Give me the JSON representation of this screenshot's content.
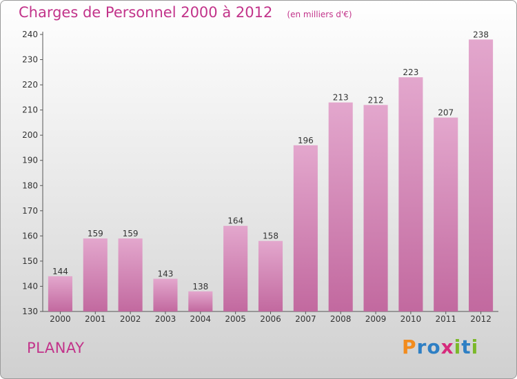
{
  "chart_data": {
    "type": "bar",
    "title": "Charges de Personnel 2000 à 2012",
    "subtitle": "(en milliers d'€)",
    "categories": [
      "2000",
      "2001",
      "2002",
      "2003",
      "2004",
      "2005",
      "2006",
      "2007",
      "2008",
      "2009",
      "2010",
      "2011",
      "2012"
    ],
    "values": [
      144,
      159,
      159,
      143,
      138,
      164,
      158,
      196,
      213,
      212,
      223,
      207,
      238
    ],
    "ylim": [
      130,
      240
    ],
    "yticks": [
      130,
      140,
      150,
      160,
      170,
      180,
      190,
      200,
      210,
      220,
      230,
      240
    ],
    "grid": false,
    "bar_color": "#c2699f",
    "bar_color_light": "#e3a7cd"
  },
  "footer": {
    "commune": "PLANAY",
    "brand_letters": [
      {
        "ch": "P",
        "color": "#f28c1e"
      },
      {
        "ch": "r",
        "color": "#2e7fc4"
      },
      {
        "ch": "o",
        "color": "#2e7fc4"
      },
      {
        "ch": "x",
        "color": "#d62a7c"
      },
      {
        "ch": "i",
        "color": "#7bb829"
      },
      {
        "ch": "t",
        "color": "#2e7fc4"
      },
      {
        "ch": "i",
        "color": "#7bb829"
      }
    ]
  }
}
